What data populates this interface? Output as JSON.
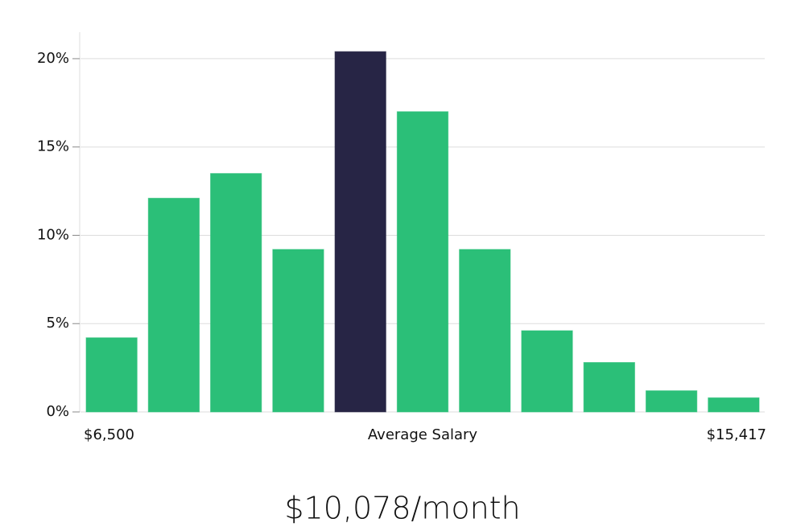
{
  "chart_data": {
    "type": "bar",
    "values": [
      4.2,
      12.1,
      13.5,
      9.2,
      20.4,
      17.0,
      9.2,
      4.6,
      2.8,
      1.2,
      0.8
    ],
    "color": "#2bbf78",
    "highlight_index": 4,
    "highlight_color": "#272545",
    "ylim": [
      0,
      21.5
    ],
    "yticks": [
      {
        "value": 0,
        "label": "0%"
      },
      {
        "value": 5,
        "label": "5%"
      },
      {
        "value": 10,
        "label": "10%"
      },
      {
        "value": 15,
        "label": "15%"
      },
      {
        "value": 20,
        "label": "20%"
      }
    ],
    "grid": true,
    "x_axis_labels": {
      "min": "$6,500",
      "center": "Average Salary",
      "max": "$15,417"
    },
    "caption": "$10,078/month"
  }
}
